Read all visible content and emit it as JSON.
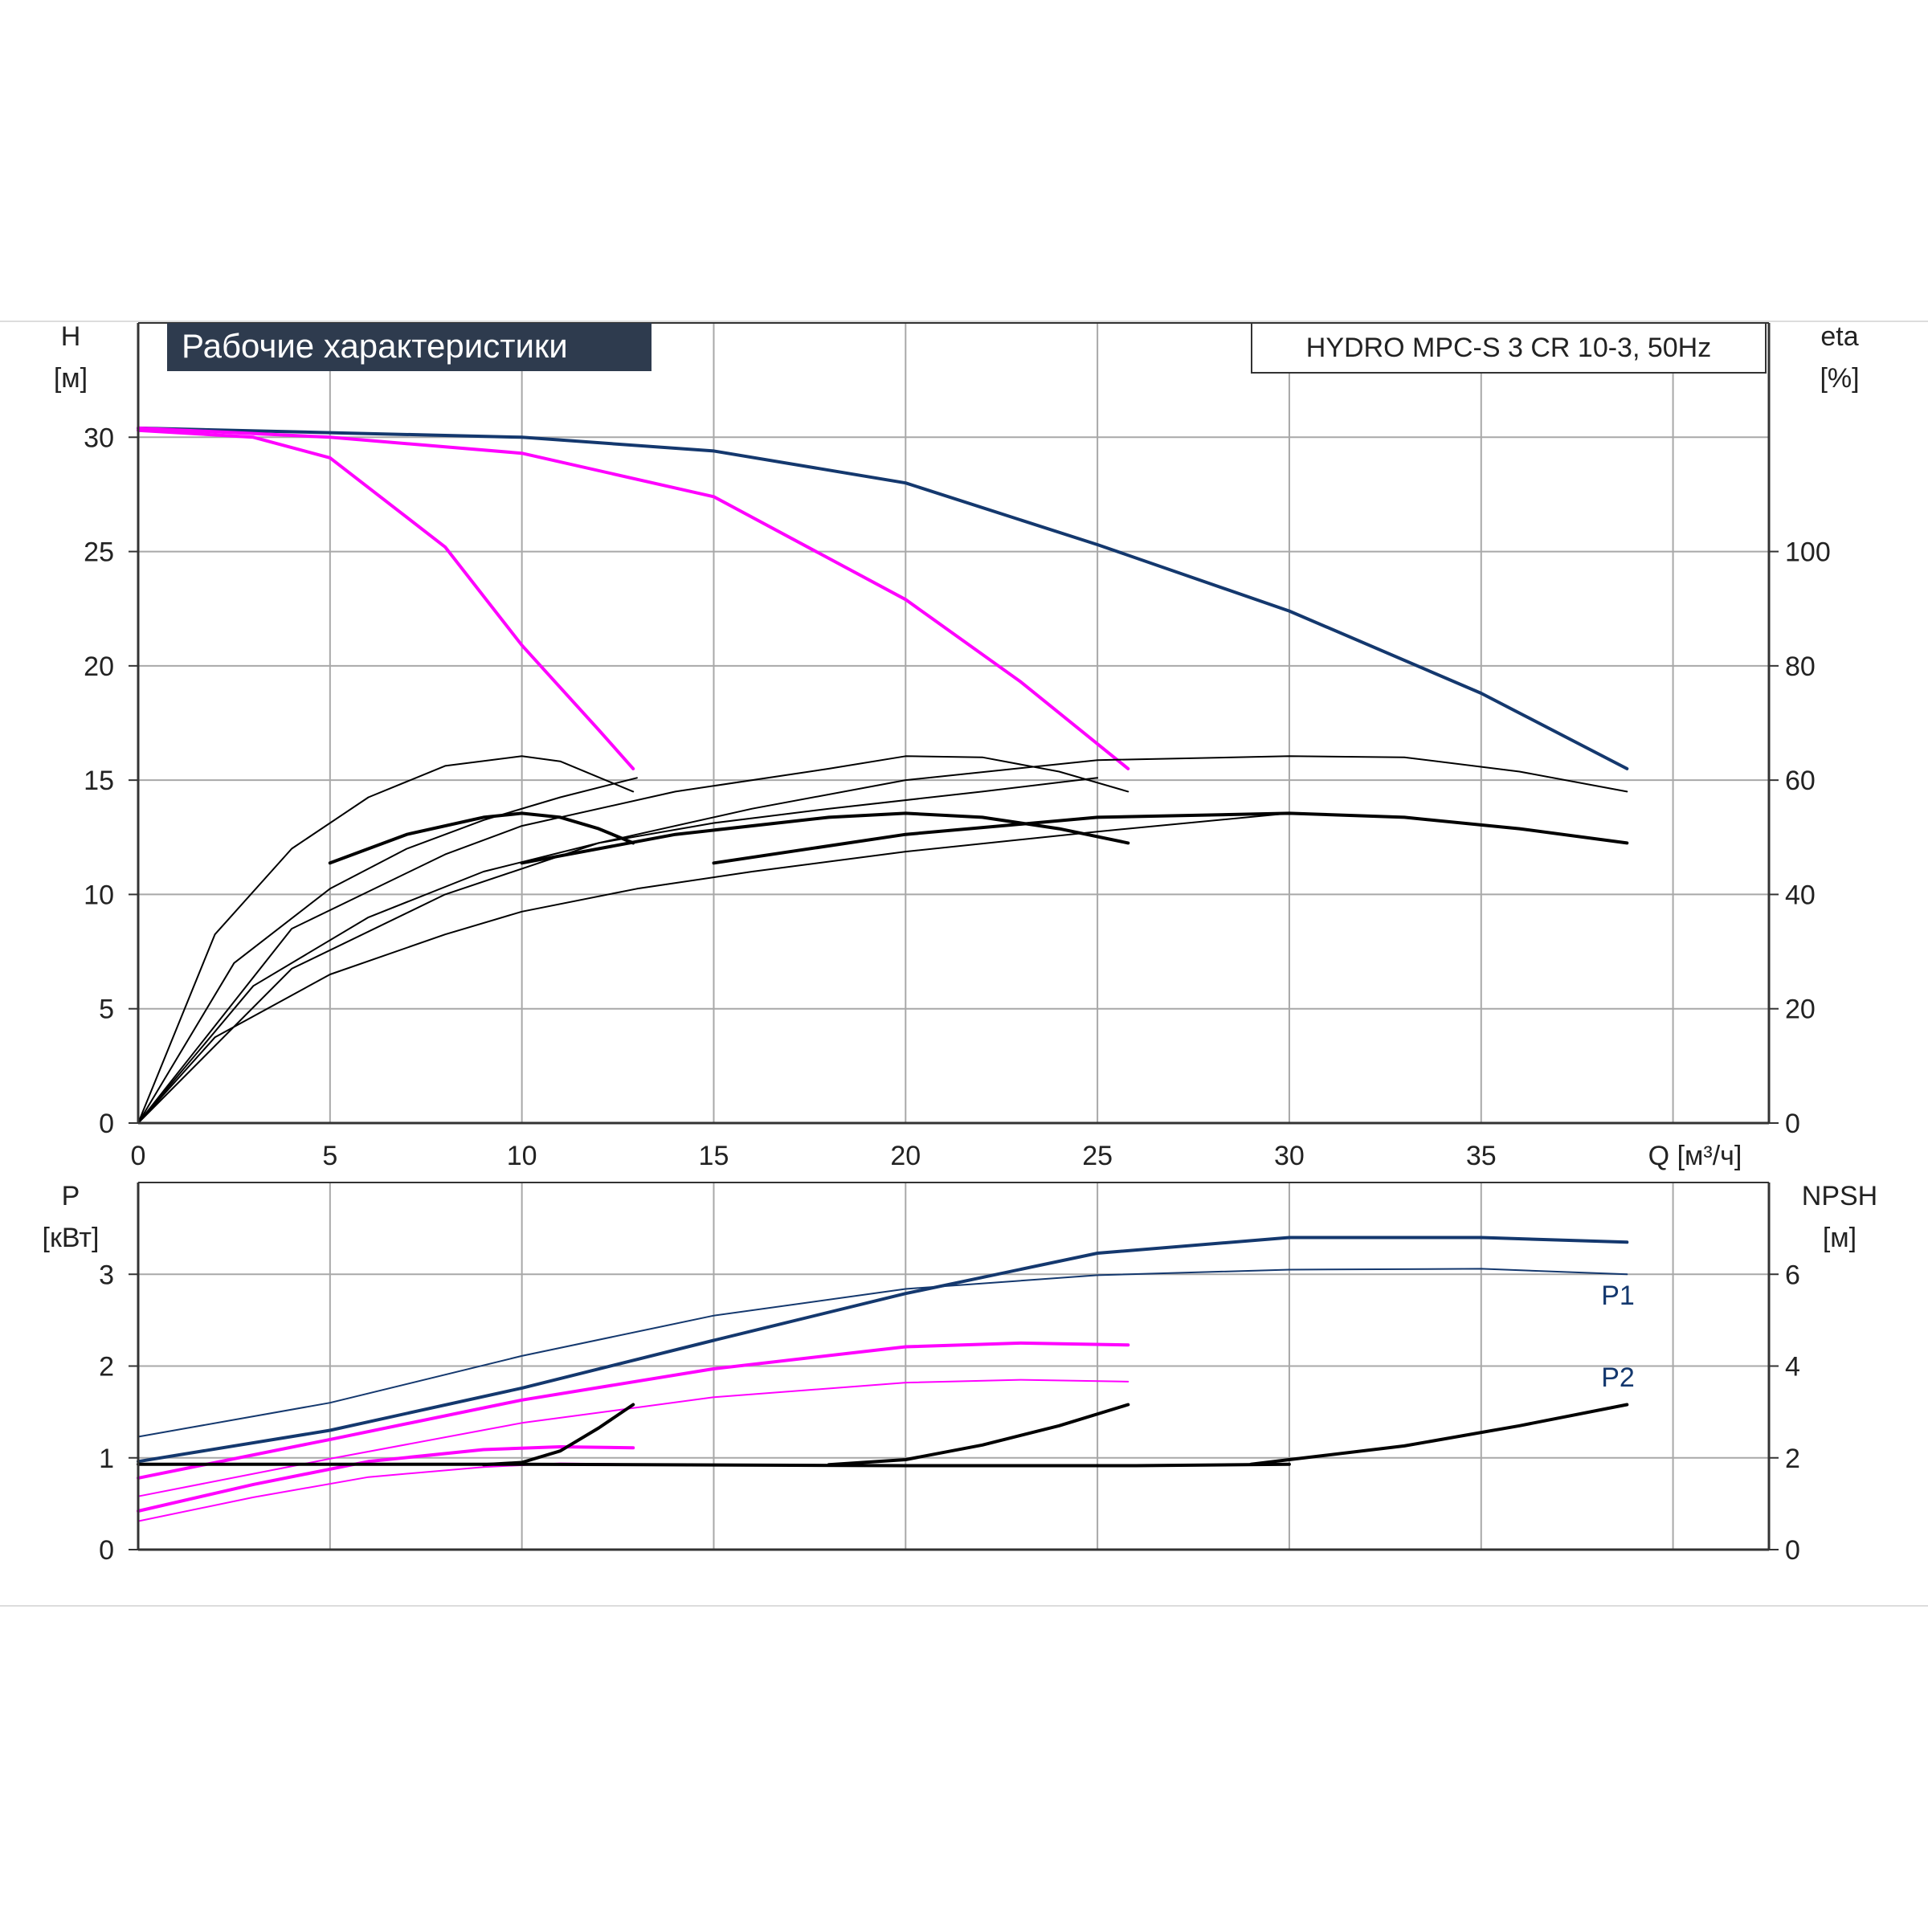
{
  "title_box": "Рабочие характеристики",
  "model_box": "HYDRO MPC-S 3 CR 10-3, 50Hz",
  "colors": {
    "frame": "#333333",
    "grid": "#a8a8a8",
    "navy": "#14386e",
    "magenta": "#ff00ff",
    "black": "#000000",
    "title_bg": "#2e3b4e"
  },
  "chart_data": [
    {
      "type": "line",
      "panel": "head",
      "left_label": [
        "H",
        "[м]"
      ],
      "right_label": [
        "eta",
        "[%]"
      ],
      "xlabel": "Q [м³/ч]",
      "xlim": [
        0,
        42.5
      ],
      "xticks": [
        "0",
        "5",
        "10",
        "15",
        "20",
        "25",
        "30",
        "35"
      ],
      "ylim": [
        0,
        35
      ],
      "yticks": [
        "0",
        "5",
        "10",
        "15",
        "20",
        "25",
        "30"
      ],
      "y2lim": [
        0,
        140
      ],
      "y2ticks": [
        "0",
        "20",
        "40",
        "60",
        "80",
        "100"
      ],
      "grid": true,
      "series": [
        {
          "axis": "left",
          "color": "navy",
          "width": 4,
          "points": [
            [
              0,
              30.4
            ],
            [
              5,
              30.2
            ],
            [
              10,
              30.0
            ],
            [
              15,
              29.4
            ],
            [
              20,
              28.0
            ],
            [
              25,
              25.3
            ],
            [
              30,
              22.4
            ],
            [
              35,
              18.8
            ],
            [
              38.8,
              15.5
            ]
          ]
        },
        {
          "axis": "left",
          "color": "magenta",
          "width": 4,
          "points": [
            [
              0,
              30.4
            ],
            [
              5,
              30.0
            ],
            [
              10,
              29.3
            ],
            [
              15,
              27.4
            ],
            [
              20,
              22.9
            ],
            [
              23,
              19.3
            ],
            [
              25.8,
              15.5
            ]
          ]
        },
        {
          "axis": "left",
          "color": "magenta",
          "width": 4,
          "points": [
            [
              0,
              30.3
            ],
            [
              3,
              30.0
            ],
            [
              5,
              29.1
            ],
            [
              8,
              25.2
            ],
            [
              10,
              20.9
            ],
            [
              12,
              17.2
            ],
            [
              12.9,
              15.5
            ]
          ]
        },
        {
          "axis": "right",
          "color": "black",
          "width": 2,
          "points": [
            [
              0,
              0
            ],
            [
              2,
              33
            ],
            [
              4,
              48
            ],
            [
              6,
              57
            ],
            [
              8,
              62.5
            ],
            [
              10,
              64.2
            ],
            [
              11,
              63.3
            ],
            [
              12,
              60.5
            ],
            [
              12.9,
              58
            ]
          ]
        },
        {
          "axis": "right",
          "color": "black",
          "width": 4,
          "points": [
            [
              5,
              45.5
            ],
            [
              7,
              50.5
            ],
            [
              9,
              53.5
            ],
            [
              10,
              54.2
            ],
            [
              11,
              53.5
            ],
            [
              12,
              51.5
            ],
            [
              12.9,
              49
            ]
          ]
        },
        {
          "axis": "right",
          "color": "black",
          "width": 2,
          "points": [
            [
              0,
              0
            ],
            [
              4,
              34
            ],
            [
              8,
              47
            ],
            [
              10,
              52
            ],
            [
              14,
              58
            ],
            [
              18,
              62
            ],
            [
              20,
              64.2
            ],
            [
              22,
              64.0
            ],
            [
              24,
              61.5
            ],
            [
              25.8,
              58
            ]
          ]
        },
        {
          "axis": "right",
          "color": "black",
          "width": 4,
          "points": [
            [
              10,
              45.5
            ],
            [
              14,
              50.5
            ],
            [
              18,
              53.5
            ],
            [
              20,
              54.2
            ],
            [
              22,
              53.5
            ],
            [
              24,
              51.5
            ],
            [
              25.8,
              49
            ]
          ]
        },
        {
          "axis": "right",
          "color": "black",
          "width": 2,
          "points": [
            [
              0,
              0
            ],
            [
              4,
              27
            ],
            [
              8,
              40
            ],
            [
              12,
              49
            ],
            [
              16,
              55
            ],
            [
              20,
              60
            ],
            [
              25,
              63.5
            ],
            [
              30,
              64.2
            ],
            [
              33,
              64.0
            ],
            [
              36,
              61.5
            ],
            [
              38.8,
              58
            ]
          ]
        },
        {
          "axis": "right",
          "color": "black",
          "width": 4,
          "points": [
            [
              15,
              45.5
            ],
            [
              20,
              50.5
            ],
            [
              25,
              53.5
            ],
            [
              30,
              54.2
            ],
            [
              33,
              53.5
            ],
            [
              36,
              51.5
            ],
            [
              38.8,
              49
            ]
          ]
        },
        {
          "axis": "right",
          "color": "black",
          "width": 2,
          "points": [
            [
              0,
              0
            ],
            [
              2,
              15
            ],
            [
              5,
              26
            ],
            [
              8,
              33
            ],
            [
              10,
              37
            ],
            [
              13,
              41
            ],
            [
              16,
              44
            ],
            [
              20,
              47.5
            ],
            [
              25,
              51
            ],
            [
              30,
              54.2
            ]
          ]
        },
        {
          "axis": "right",
          "color": "black",
          "width": 2,
          "points": [
            [
              0,
              0
            ],
            [
              3,
              24
            ],
            [
              6,
              36
            ],
            [
              9,
              44
            ],
            [
              12,
              49
            ],
            [
              15,
              52.5
            ],
            [
              18,
              55
            ],
            [
              22,
              58
            ],
            [
              25,
              60.4
            ]
          ]
        },
        {
          "axis": "right",
          "color": "black",
          "width": 2,
          "points": [
            [
              0,
              0
            ],
            [
              2.5,
              28
            ],
            [
              5,
              41
            ],
            [
              7,
              48
            ],
            [
              9,
              53
            ],
            [
              11,
              57
            ],
            [
              13,
              60.4
            ]
          ]
        }
      ]
    },
    {
      "type": "line",
      "panel": "power",
      "left_label": [
        "P",
        "[кВт]"
      ],
      "right_label": [
        "NPSH",
        "[м]"
      ],
      "xlim": [
        0,
        42.5
      ],
      "ylim": [
        0,
        4
      ],
      "yticks": [
        "0",
        "1",
        "2",
        "3"
      ],
      "y2lim": [
        0,
        8
      ],
      "y2ticks": [
        "0",
        "2",
        "4",
        "6"
      ],
      "grid": true,
      "annotations": [
        "P1",
        "P2"
      ],
      "series": [
        {
          "name": "P1",
          "axis": "left",
          "color": "navy",
          "width": 4,
          "points": [
            [
              0,
              0.96
            ],
            [
              5,
              1.3
            ],
            [
              10,
              1.76
            ],
            [
              15,
              2.28
            ],
            [
              20,
              2.79
            ],
            [
              25,
              3.23
            ],
            [
              30,
              3.4
            ],
            [
              35,
              3.4
            ],
            [
              38.8,
              3.35
            ]
          ]
        },
        {
          "name": "P2",
          "axis": "left",
          "color": "navy",
          "width": 2,
          "points": [
            [
              0,
              1.23
            ],
            [
              5,
              1.6
            ],
            [
              10,
              2.11
            ],
            [
              15,
              2.55
            ],
            [
              20,
              2.84
            ],
            [
              25,
              2.99
            ],
            [
              30,
              3.05
            ],
            [
              35,
              3.06
            ],
            [
              38.8,
              3.0
            ]
          ]
        },
        {
          "axis": "left",
          "color": "magenta",
          "width": 4,
          "points": [
            [
              0,
              0.78
            ],
            [
              5,
              1.2
            ],
            [
              10,
              1.63
            ],
            [
              15,
              1.97
            ],
            [
              20,
              2.21
            ],
            [
              23,
              2.25
            ],
            [
              25.8,
              2.23
            ]
          ]
        },
        {
          "axis": "left",
          "color": "magenta",
          "width": 2,
          "points": [
            [
              0,
              0.58
            ],
            [
              5,
              0.99
            ],
            [
              10,
              1.38
            ],
            [
              15,
              1.66
            ],
            [
              20,
              1.82
            ],
            [
              23,
              1.85
            ],
            [
              25.8,
              1.83
            ]
          ]
        },
        {
          "axis": "left",
          "color": "magenta",
          "width": 4,
          "points": [
            [
              0,
              0.42
            ],
            [
              3,
              0.71
            ],
            [
              6,
              0.96
            ],
            [
              9,
              1.09
            ],
            [
              11,
              1.12
            ],
            [
              12.9,
              1.11
            ]
          ]
        },
        {
          "axis": "left",
          "color": "magenta",
          "width": 2,
          "points": [
            [
              0,
              0.31
            ],
            [
              3,
              0.57
            ],
            [
              6,
              0.79
            ],
            [
              9,
              0.9
            ],
            [
              11,
              0.94
            ],
            [
              12.9,
              0.93
            ]
          ]
        },
        {
          "axis": "right",
          "color": "black",
          "width": 4,
          "points": [
            [
              0,
              1.86
            ],
            [
              10,
              1.86
            ],
            [
              20,
              1.83
            ],
            [
              26,
              1.83
            ],
            [
              30,
              1.86
            ]
          ]
        },
        {
          "axis": "right",
          "color": "black",
          "width": 4,
          "points": [
            [
              9,
              1.85
            ],
            [
              10,
              1.9
            ],
            [
              11,
              2.15
            ],
            [
              12,
              2.65
            ],
            [
              12.9,
              3.16
            ]
          ]
        },
        {
          "axis": "right",
          "color": "black",
          "width": 4,
          "points": [
            [
              18,
              1.85
            ],
            [
              20,
              1.96
            ],
            [
              22,
              2.28
            ],
            [
              24,
              2.7
            ],
            [
              25.8,
              3.16
            ]
          ]
        },
        {
          "axis": "right",
          "color": "black",
          "width": 4,
          "points": [
            [
              29,
              1.86
            ],
            [
              30,
              1.96
            ],
            [
              33,
              2.26
            ],
            [
              36,
              2.7
            ],
            [
              38.8,
              3.16
            ]
          ]
        }
      ]
    }
  ]
}
